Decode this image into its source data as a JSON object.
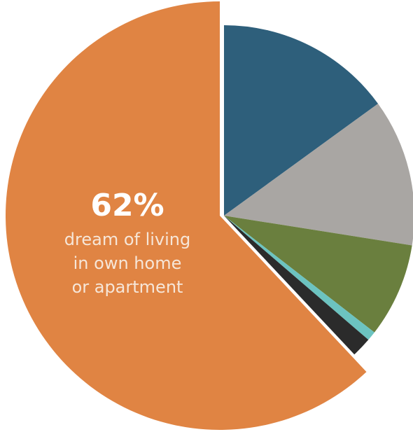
{
  "chart_data": {
    "type": "pie",
    "start_angle_deg": 0,
    "direction": "clockwise",
    "slices": [
      {
        "value": 15.0,
        "color": "#2e5f7b",
        "exploded": false
      },
      {
        "value": 12.5,
        "color": "#a9a6a3",
        "exploded": false
      },
      {
        "value": 8.0,
        "color": "#6a7f3e",
        "exploded": false
      },
      {
        "value": 0.8,
        "color": "#6cc3c0",
        "exploded": false
      },
      {
        "value": 1.7,
        "color": "#2b2b2b",
        "exploded": false
      },
      {
        "value": 62.0,
        "color": "#e08443",
        "exploded": true
      }
    ],
    "callout": {
      "percent": "62%",
      "lines": [
        "dream of living",
        "in own home",
        "or apartment"
      ]
    }
  }
}
